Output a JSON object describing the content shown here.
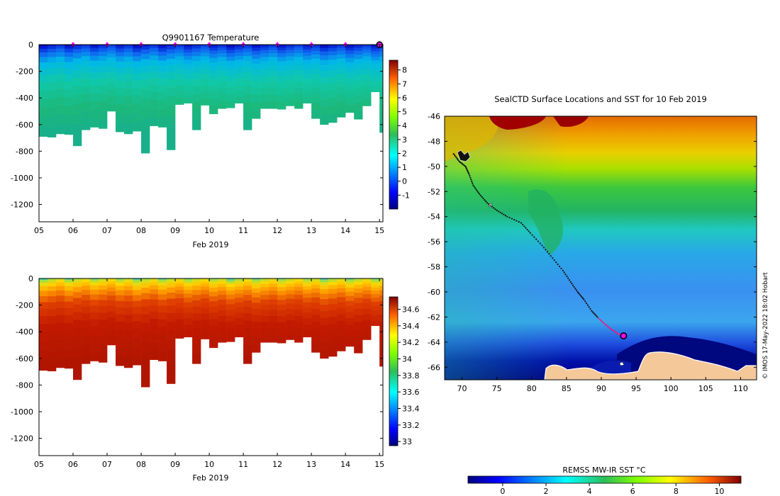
{
  "chart_data": [
    {
      "id": "temperature-section",
      "type": "heatmap",
      "title": "Q9901167  Temperature",
      "xlabel": "Feb 2019",
      "x_ticks": [
        "05",
        "06",
        "07",
        "08",
        "09",
        "10",
        "11",
        "12",
        "13",
        "14",
        "15"
      ],
      "xlim": [
        5,
        15.1
      ],
      "ylim": [
        -1330,
        0
      ],
      "y_ticks": [
        0,
        -200,
        -400,
        -600,
        -800,
        -1000,
        -1200
      ],
      "colorbar": {
        "ticks": [
          8,
          7,
          6,
          5,
          4,
          3,
          2,
          1,
          0,
          -1
        ],
        "range": [
          -2,
          8.7
        ],
        "scale": "jet"
      },
      "surface_markers_x": [
        6,
        7,
        8,
        9,
        10,
        11,
        12,
        13,
        14
      ],
      "current_position_x": 15,
      "profiles_x": [
        5.0,
        5.25,
        5.5,
        5.75,
        6.0,
        6.25,
        6.5,
        6.75,
        7.0,
        7.25,
        7.5,
        7.75,
        8.0,
        8.25,
        8.5,
        8.75,
        9.0,
        9.25,
        9.5,
        9.75,
        10.0,
        10.25,
        10.5,
        10.75,
        11.0,
        11.25,
        11.5,
        11.75,
        12.0,
        12.25,
        12.5,
        12.75,
        13.0,
        13.25,
        13.5,
        13.75,
        14.0,
        14.25,
        14.5,
        14.75,
        15.0
      ],
      "max_depth_m": [
        690,
        695,
        670,
        675,
        760,
        640,
        620,
        630,
        500,
        655,
        670,
        650,
        815,
        610,
        620,
        790,
        450,
        440,
        640,
        455,
        520,
        480,
        475,
        440,
        640,
        555,
        480,
        480,
        485,
        460,
        480,
        440,
        555,
        600,
        585,
        545,
        510,
        560,
        460,
        355,
        660
      ]
    },
    {
      "id": "salinity-section",
      "type": "heatmap",
      "title": "",
      "xlabel": "Feb 2019",
      "x_ticks": [
        "05",
        "06",
        "07",
        "08",
        "09",
        "10",
        "11",
        "12",
        "13",
        "14",
        "15"
      ],
      "xlim": [
        5,
        15.1
      ],
      "ylim": [
        -1330,
        0
      ],
      "y_ticks": [
        0,
        -200,
        -400,
        -600,
        -800,
        -1000,
        -1200
      ],
      "colorbar": {
        "ticks": [
          "34.6",
          "34.4",
          "34.2",
          "34",
          "33.8",
          "33.6",
          "33.4",
          "33.2",
          "33"
        ],
        "range": [
          32.95,
          34.75
        ],
        "scale": "jet"
      },
      "profiles_x": [
        5.0,
        5.25,
        5.5,
        5.75,
        6.0,
        6.25,
        6.5,
        6.75,
        7.0,
        7.25,
        7.5,
        7.75,
        8.0,
        8.25,
        8.5,
        8.75,
        9.0,
        9.25,
        9.5,
        9.75,
        10.0,
        10.25,
        10.5,
        10.75,
        11.0,
        11.25,
        11.5,
        11.75,
        12.0,
        12.25,
        12.5,
        12.75,
        13.0,
        13.25,
        13.5,
        13.75,
        14.0,
        14.25,
        14.5,
        14.75,
        15.0
      ],
      "max_depth_m": [
        690,
        695,
        670,
        675,
        760,
        640,
        620,
        630,
        500,
        655,
        670,
        650,
        815,
        610,
        620,
        790,
        450,
        440,
        640,
        455,
        520,
        480,
        475,
        440,
        640,
        555,
        480,
        480,
        485,
        460,
        480,
        440,
        555,
        600,
        585,
        545,
        510,
        560,
        460,
        355,
        660
      ]
    },
    {
      "id": "sst-map",
      "type": "heatmap",
      "title": "SealCTD Surface Locations and SST for 10 Feb 2019",
      "x_ticks": [
        70,
        75,
        80,
        85,
        90,
        95,
        100,
        105,
        110
      ],
      "y_ticks": [
        -46,
        -48,
        -50,
        -52,
        -54,
        -56,
        -58,
        -60,
        -62,
        -64,
        -66
      ],
      "xlim": [
        67.5,
        112.3
      ],
      "ylim": [
        -67.0,
        -46.0
      ],
      "colorbar": {
        "title": "REMSS MW-IR SST °C",
        "ticks": [
          0,
          2,
          4,
          6,
          8,
          10
        ],
        "range": [
          -1.6,
          11.0
        ],
        "scale": "jet"
      },
      "track": {
        "lon": [
          68.8,
          69.6,
          70.5,
          71.0,
          71.6,
          72.5,
          73.6,
          75.0,
          76.5,
          78.5,
          79.8,
          81.5,
          83.0,
          84.5,
          85.6,
          86.6,
          87.5,
          88.6,
          89.6,
          90.6,
          91.5,
          92.3,
          93.1
        ],
        "lat": [
          -49.0,
          -49.6,
          -50.0,
          -50.6,
          -51.5,
          -52.2,
          -52.9,
          -53.5,
          -54.0,
          -54.5,
          -55.3,
          -56.3,
          -57.3,
          -58.3,
          -59.2,
          -60.0,
          -60.6,
          -61.5,
          -62.1,
          -62.6,
          -63.0,
          -63.3,
          -63.5
        ]
      },
      "current_position": {
        "lon": 93.2,
        "lat": -63.5
      },
      "credit": "© IMOS 17-May-2022 18:02 Hobart"
    }
  ]
}
